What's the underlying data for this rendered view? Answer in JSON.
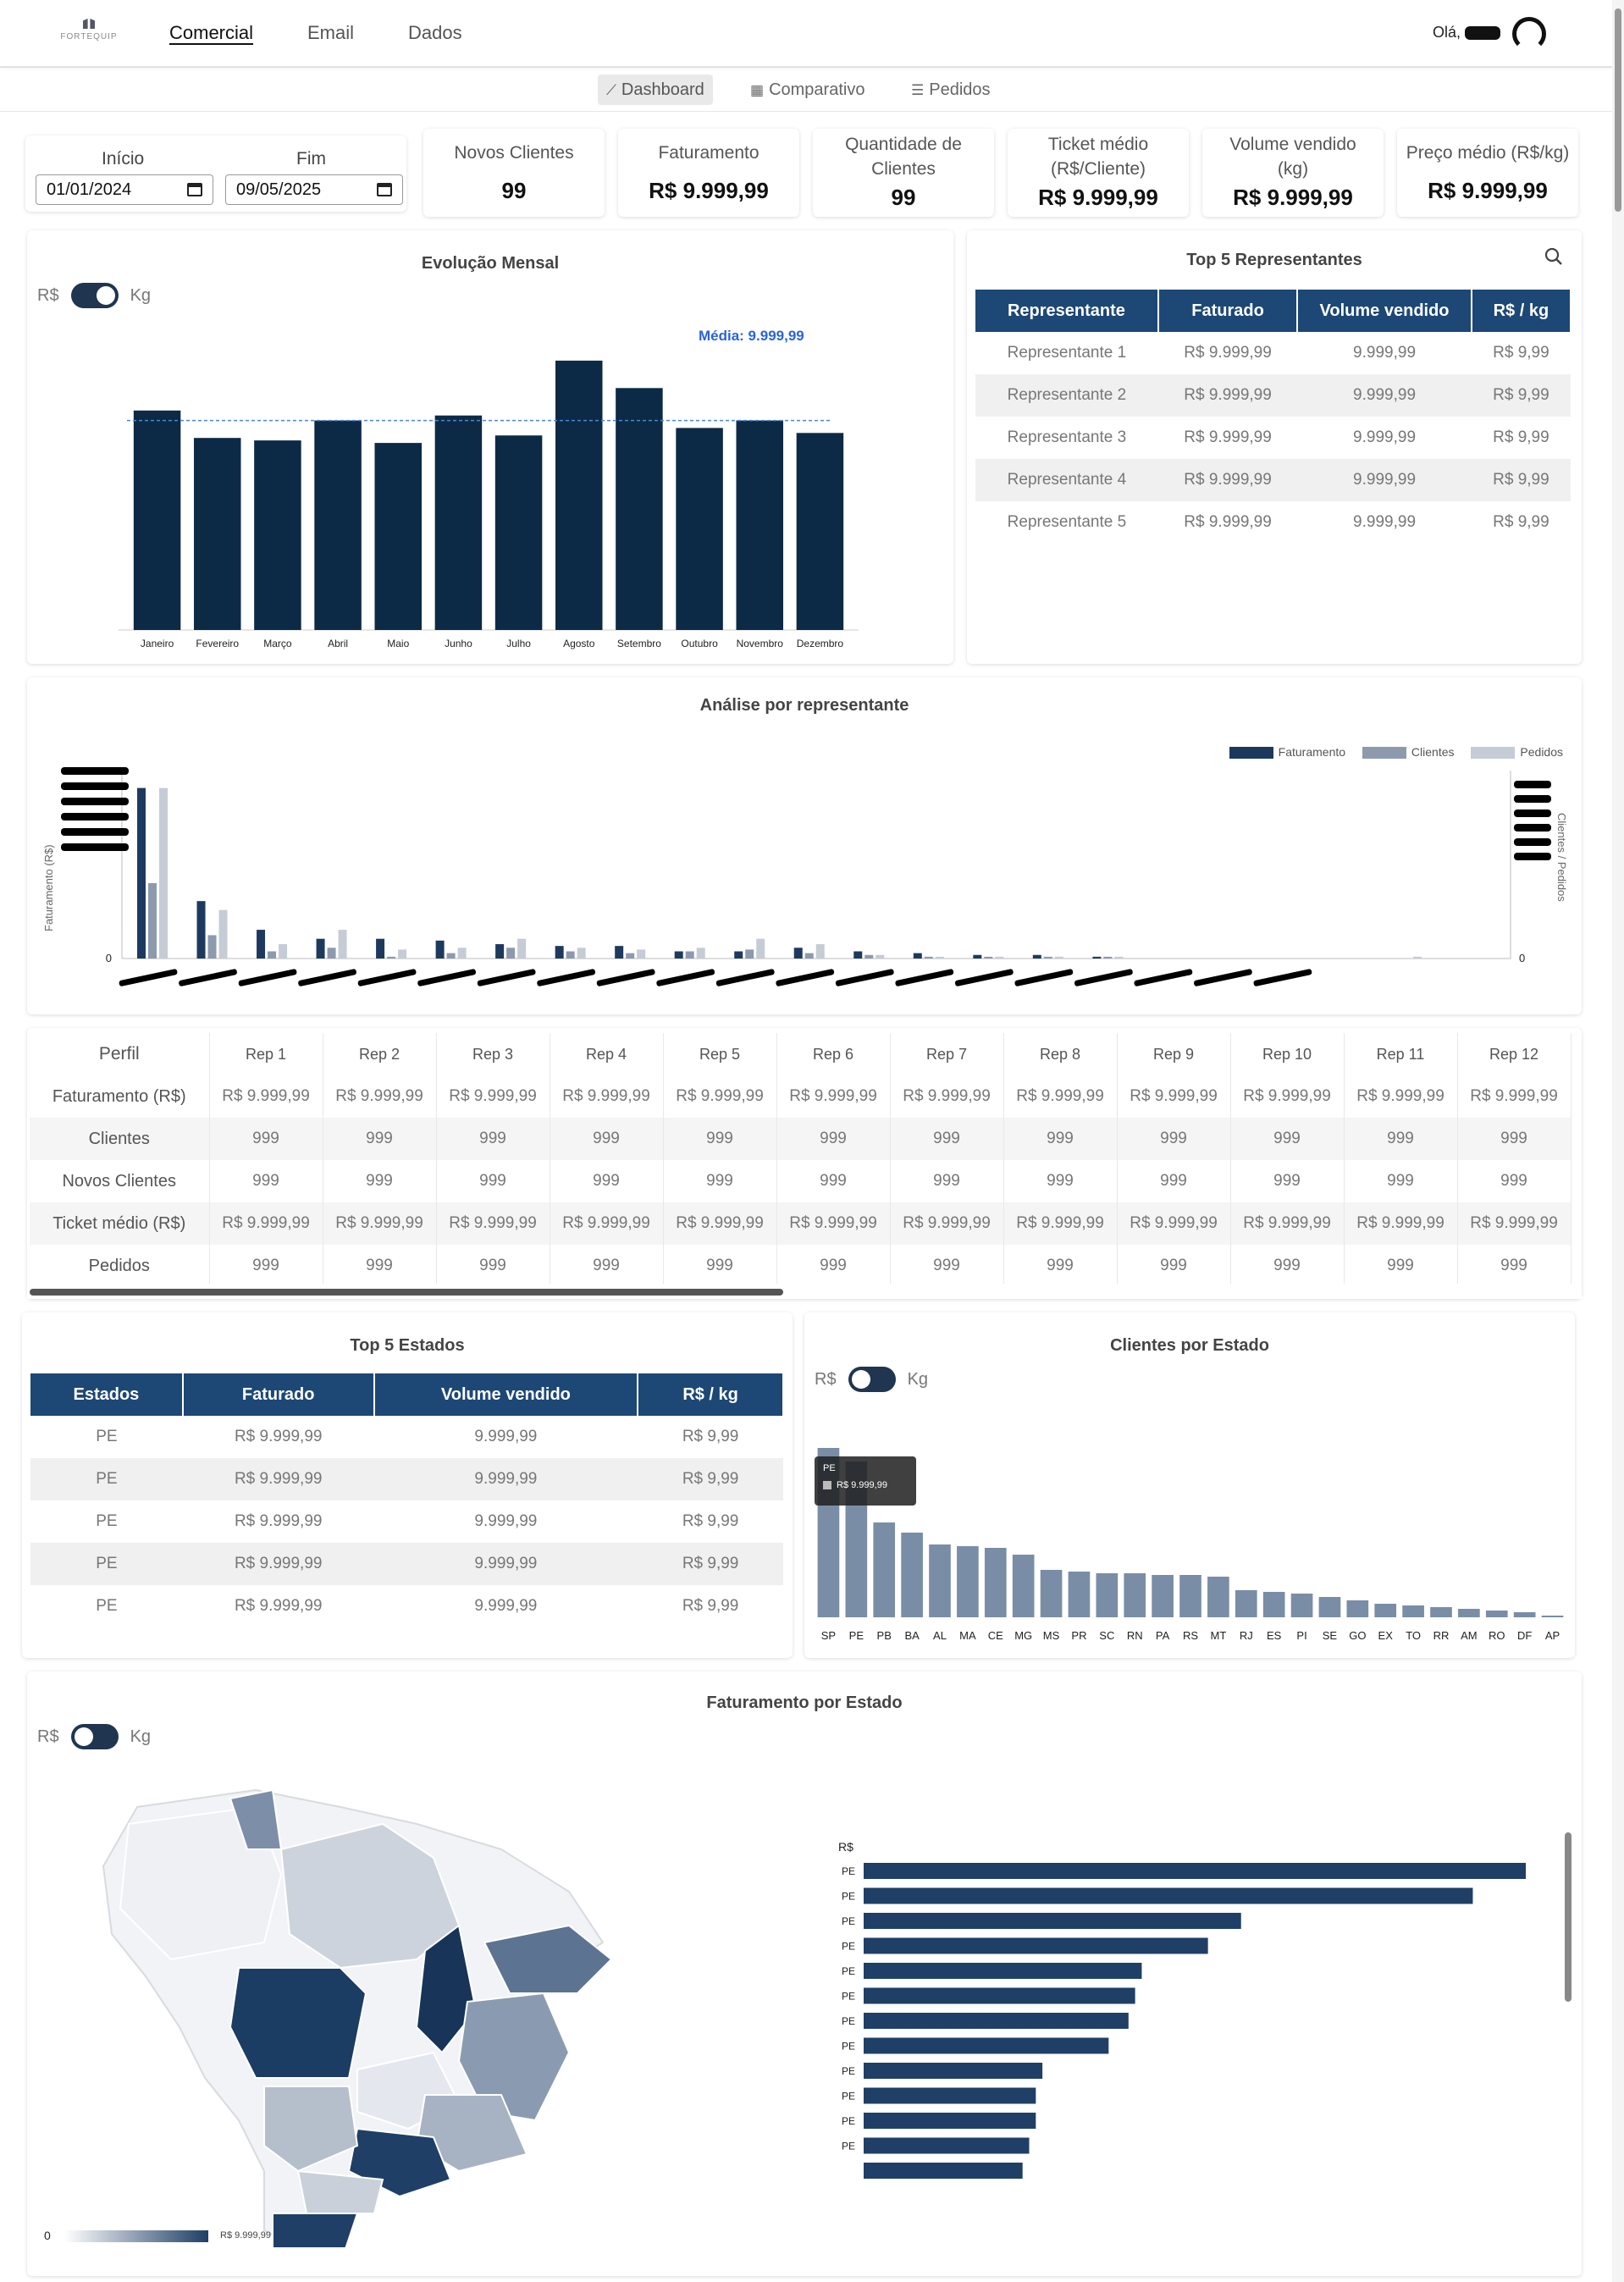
{
  "nav": {
    "logo": "FORTEQUIP",
    "items": [
      "Comercial",
      "Email",
      "Dados"
    ],
    "greeting": "Olá,"
  },
  "subnav": [
    {
      "label": "Dashboard",
      "icon": "line-chart-icon"
    },
    {
      "label": "Comparativo",
      "icon": "table-icon"
    },
    {
      "label": "Pedidos",
      "icon": "list-icon"
    }
  ],
  "filters": {
    "start_label": "Início",
    "end_label": "Fim",
    "start_value": "01/01/2024",
    "end_value": "09/05/2025"
  },
  "kpis": [
    {
      "label": "Novos Clientes",
      "value": "99"
    },
    {
      "label": "Faturamento",
      "value": "R$ 9.999,99"
    },
    {
      "label": "Quantidade de Clientes",
      "value": "99"
    },
    {
      "label": "Ticket médio (R$/Cliente)",
      "value": "R$ 9.999,99"
    },
    {
      "label": "Volume vendido (kg)",
      "value": "R$ 9.999,99"
    },
    {
      "label": "Preço médio (R$/kg)",
      "value": "R$ 9.999,99"
    }
  ],
  "toggle": {
    "left": "R$",
    "right": "Kg"
  },
  "evolucao": {
    "title": "Evolução Mensal",
    "media_label": "Média: 9.999,99"
  },
  "top_reps": {
    "title": "Top 5 Representantes",
    "headers": [
      "Representante",
      "Faturado",
      "Volume vendido",
      "R$ / kg"
    ],
    "rows": [
      [
        "Representante 1",
        "R$ 9.999,99",
        "9.999,99",
        "R$ 9,99"
      ],
      [
        "Representante 2",
        "R$ 9.999,99",
        "9.999,99",
        "R$ 9,99"
      ],
      [
        "Representante 3",
        "R$ 9.999,99",
        "9.999,99",
        "R$ 9,99"
      ],
      [
        "Representante 4",
        "R$ 9.999,99",
        "9.999,99",
        "R$ 9,99"
      ],
      [
        "Representante 5",
        "R$ 9.999,99",
        "9.999,99",
        "R$ 9,99"
      ]
    ]
  },
  "analise": {
    "title": "Análise por representante",
    "ylabel_left": "Faturamento (R$)",
    "ylabel_right": "Clientes / Pedidos",
    "zero": "0"
  },
  "rep_table": {
    "corner": "Perfil",
    "columns": [
      "Rep 1",
      "Rep 2",
      "Rep 3",
      "Rep 4",
      "Rep 5",
      "Rep 6",
      "Rep 7",
      "Rep 8",
      "Rep 9",
      "Rep 10",
      "Rep 11",
      "Rep 12"
    ],
    "rows": [
      {
        "label": "Faturamento (R$)",
        "value": "R$ 9.999,99"
      },
      {
        "label": "Clientes",
        "value": "999"
      },
      {
        "label": "Novos Clientes",
        "value": "999"
      },
      {
        "label": "Ticket médio (R$)",
        "value": "R$ 9.999,99"
      },
      {
        "label": "Pedidos",
        "value": "999"
      }
    ]
  },
  "top_estados": {
    "title": "Top 5 Estados",
    "headers": [
      "Estados",
      "Faturado",
      "Volume vendido",
      "R$ / kg"
    ],
    "rows": [
      [
        "PE",
        "R$ 9.999,99",
        "9.999,99",
        "R$ 9,99"
      ],
      [
        "PE",
        "R$ 9.999,99",
        "9.999,99",
        "R$ 9,99"
      ],
      [
        "PE",
        "R$ 9.999,99",
        "9.999,99",
        "R$ 9,99"
      ],
      [
        "PE",
        "R$ 9.999,99",
        "9.999,99",
        "R$ 9,99"
      ],
      [
        "PE",
        "R$ 9.999,99",
        "9.999,99",
        "R$ 9,99"
      ]
    ]
  },
  "clientes_estado": {
    "title": "Clientes por Estado",
    "tooltip_state": "PE",
    "tooltip_value": "R$ 9.999,99"
  },
  "fat_estado": {
    "title": "Faturamento por Estado",
    "legend_min": "0",
    "legend_max": "R$ 9.999,99",
    "bar_axis_label": "R$"
  },
  "colors": {
    "navy": "#0c2a45",
    "table_head": "#1d4775",
    "steel": "#7a8da6",
    "light": "#c5ccd6",
    "mid": "#8d9aae",
    "accent_blue": "#2b63d9"
  },
  "chart_data": [
    {
      "type": "bar",
      "title": "Evolução Mensal",
      "categories": [
        "Janeiro",
        "Fevereiro",
        "Março",
        "Abril",
        "Maio",
        "Junho",
        "Julho",
        "Agosto",
        "Setembro",
        "Outubro",
        "Novembro",
        "Dezembro"
      ],
      "values": [
        88,
        77,
        76,
        84,
        75,
        86,
        78,
        108,
        97,
        81,
        84,
        79
      ],
      "reference_line": 84,
      "ylim": [
        0,
        110
      ]
    },
    {
      "type": "bar",
      "title": "Análise por representante",
      "x": [
        "",
        "",
        "",
        "",
        "",
        "",
        "",
        "",
        "",
        "",
        "",
        "",
        "",
        "",
        "",
        "",
        "",
        "",
        "",
        "",
        "",
        "",
        ""
      ],
      "series": [
        {
          "name": "Faturamento",
          "values": [
            95,
            32,
            16,
            11,
            11,
            10,
            8,
            7,
            7,
            4,
            4,
            6,
            4,
            3,
            2,
            2,
            1,
            0,
            0,
            0,
            0,
            0,
            0
          ]
        },
        {
          "name": "Clientes",
          "values": [
            42,
            13,
            4,
            6,
            1,
            3,
            6,
            4,
            3,
            4,
            5,
            3,
            2,
            1,
            1,
            1,
            1,
            0,
            0,
            0,
            0,
            0,
            0
          ]
        },
        {
          "name": "Pedidos",
          "values": [
            95,
            27,
            8,
            16,
            5,
            6,
            11,
            6,
            5,
            6,
            11,
            8,
            2,
            1,
            1,
            1,
            1,
            0,
            0,
            0,
            0,
            1,
            0
          ]
        }
      ],
      "legend": "top-right"
    },
    {
      "type": "bar",
      "title": "Clientes por Estado",
      "categories": [
        "SP",
        "PE",
        "PB",
        "BA",
        "AL",
        "MA",
        "CE",
        "MG",
        "MS",
        "PR",
        "SC",
        "RN",
        "PA",
        "RS",
        "MT",
        "RJ",
        "ES",
        "PI",
        "SE",
        "GO",
        "EX",
        "TO",
        "RR",
        "AM",
        "RO",
        "DF",
        "AP"
      ],
      "values": [
        100,
        92,
        56,
        50,
        43,
        42,
        41,
        37,
        28,
        27,
        26,
        26,
        25,
        25,
        24,
        16,
        15,
        14,
        12,
        10,
        8,
        7,
        6,
        5,
        4,
        3,
        1
      ]
    },
    {
      "type": "bar",
      "title": "Faturamento por Estado",
      "orientation": "horizontal",
      "categories": [
        "PE",
        "PE",
        "PE",
        "PE",
        "PE",
        "PE",
        "PE",
        "PE",
        "PE",
        "PE",
        "PE",
        "PE",
        ""
      ],
      "values": [
        100,
        92,
        57,
        52,
        42,
        41,
        40,
        37,
        27,
        26,
        26,
        25,
        24
      ]
    }
  ]
}
